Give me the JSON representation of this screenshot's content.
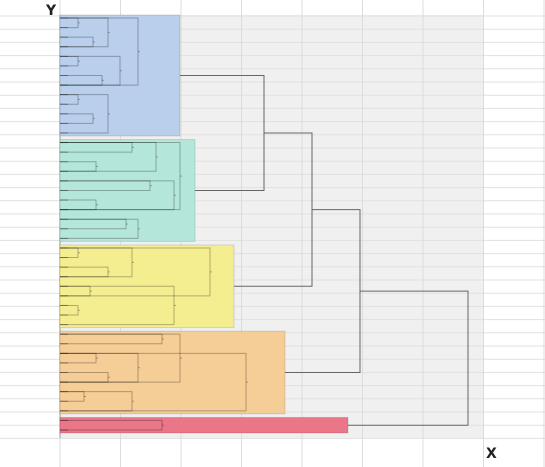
{
  "chart_data": {
    "type": "dendrogram",
    "orientation": "horizontal",
    "xlabel": "X",
    "ylabel": "Y",
    "grid": true,
    "leaf_count": 44,
    "linkage_color": "#666666",
    "clusters": [
      {
        "color": "#b9cfeb",
        "leaves": [
          0,
          12
        ],
        "height": 2.0
      },
      {
        "color": "#b5e6da",
        "leaves": [
          13,
          23
        ],
        "height": 2.25
      },
      {
        "color": "#f4ee90",
        "leaves": [
          24,
          32
        ],
        "height": 2.9
      },
      {
        "color": "#f5cd97",
        "leaves": [
          33,
          41
        ],
        "height": 3.75
      },
      {
        "color": "#e97788",
        "leaves": [
          42,
          43
        ],
        "height": 4.8
      }
    ],
    "sub_merges": [
      {
        "cluster": 0,
        "pairs": [
          [
            0,
            1,
            0.3
          ],
          [
            2,
            3,
            0.55
          ],
          [
            4,
            5,
            0.3
          ],
          [
            6,
            7,
            0.7
          ],
          [
            8,
            9,
            0.3
          ],
          [
            10,
            11,
            0.55
          ],
          [
            0,
            3,
            0.8
          ],
          [
            4,
            7,
            1.0
          ],
          [
            8,
            12,
            0.8
          ],
          [
            0,
            7,
            1.3
          ]
        ]
      },
      {
        "cluster": 1,
        "pairs": [
          [
            13,
            14,
            1.2
          ],
          [
            15,
            16,
            0.6
          ],
          [
            17,
            18,
            1.5
          ],
          [
            19,
            20,
            0.6
          ],
          [
            21,
            22,
            1.1
          ],
          [
            13,
            16,
            1.6
          ],
          [
            17,
            20,
            1.9
          ],
          [
            21,
            23,
            1.3
          ],
          [
            13,
            20,
            2.0
          ]
        ]
      },
      {
        "cluster": 2,
        "pairs": [
          [
            24,
            25,
            0.3
          ],
          [
            26,
            27,
            0.8
          ],
          [
            28,
            29,
            0.5
          ],
          [
            30,
            31,
            0.3
          ],
          [
            24,
            27,
            1.2
          ],
          [
            28,
            32,
            1.9
          ],
          [
            24,
            29,
            2.5
          ]
        ]
      },
      {
        "cluster": 3,
        "pairs": [
          [
            33,
            34,
            1.7
          ],
          [
            35,
            36,
            0.6
          ],
          [
            37,
            38,
            0.8
          ],
          [
            39,
            40,
            0.4
          ],
          [
            35,
            38,
            1.3
          ],
          [
            39,
            41,
            1.2
          ],
          [
            33,
            38,
            2.0
          ],
          [
            35,
            41,
            3.1
          ]
        ]
      },
      {
        "cluster": 4,
        "pairs": [
          [
            42,
            43,
            1.7
          ]
        ]
      }
    ],
    "top_merges": [
      {
        "a": 0,
        "b": 1,
        "height": 3.4
      },
      {
        "a": "m0",
        "b": 2,
        "height": 4.2
      },
      {
        "a": "m1",
        "b": 3,
        "height": 5.0
      },
      {
        "a": "m2",
        "b": 4,
        "height": 6.8
      }
    ]
  }
}
